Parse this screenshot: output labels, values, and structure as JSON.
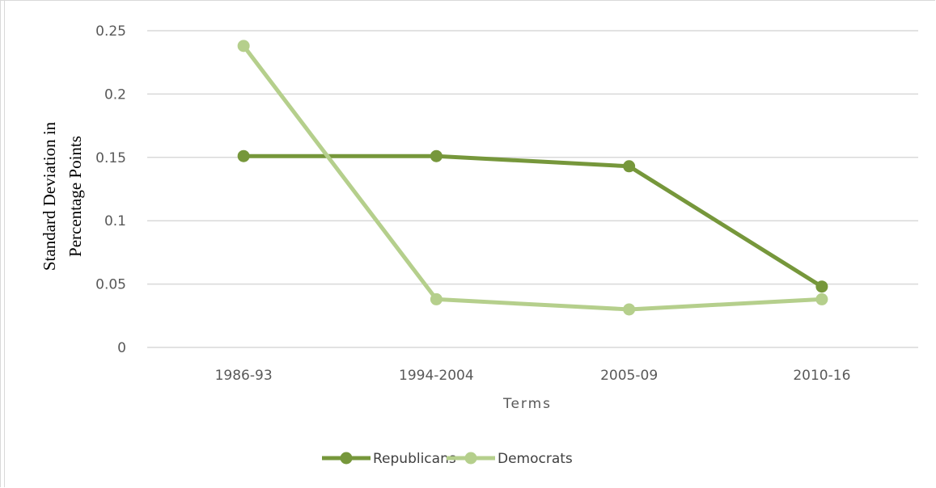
{
  "chart_data": {
    "type": "line",
    "categories": [
      "1986-93",
      "1994-2004",
      "2005-09",
      "2010-16"
    ],
    "series": [
      {
        "name": "Republicans",
        "values": [
          0.151,
          0.151,
          0.143,
          0.048
        ],
        "color": "#76973b"
      },
      {
        "name": "Democrats",
        "values": [
          0.238,
          0.038,
          0.03,
          0.038
        ],
        "color": "#b5cf8c"
      }
    ],
    "xlabel": "Terms",
    "ylabel_lines": [
      "Standard Deviation in",
      "Percentage Points"
    ],
    "ylim": [
      0,
      0.25
    ],
    "yticks": [
      0,
      0.05,
      0.1,
      0.15,
      0.2,
      0.25
    ],
    "ytick_labels": [
      "0",
      "0.05",
      "0.1",
      "0.15",
      "0.2",
      "0.25"
    ],
    "grid": true,
    "legend_position": "bottom"
  }
}
